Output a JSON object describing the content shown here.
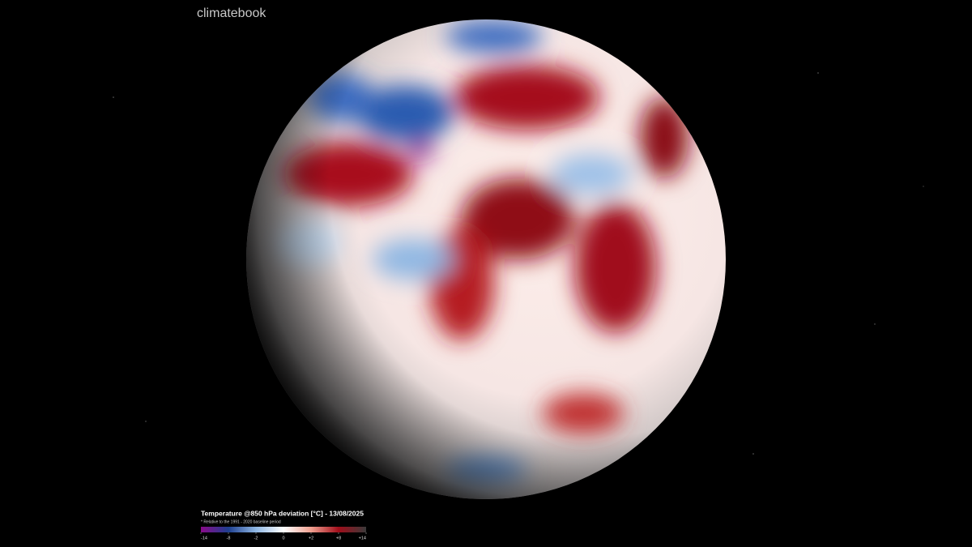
{
  "brand": "climatebook",
  "legend": {
    "title": "Temperature @850 hPa deviation [°C] - 13/08/2025",
    "subtitle": "* Relative to the 1991 - 2020 baseline period",
    "ticks": [
      {
        "value": -14,
        "label": "-14"
      },
      {
        "value": -8,
        "label": "-8"
      },
      {
        "value": -2,
        "label": "-2"
      },
      0,
      {
        "value": 2,
        "label": "+2"
      },
      {
        "value": 8,
        "label": "+8"
      },
      {
        "value": 14,
        "label": "+14"
      }
    ],
    "colors": [
      "#8a0a8a",
      "#1e3f8f",
      "#8fb7e3",
      "#ffffff",
      "#f0a090",
      "#a00d1a",
      "#3a3a3a"
    ]
  }
}
